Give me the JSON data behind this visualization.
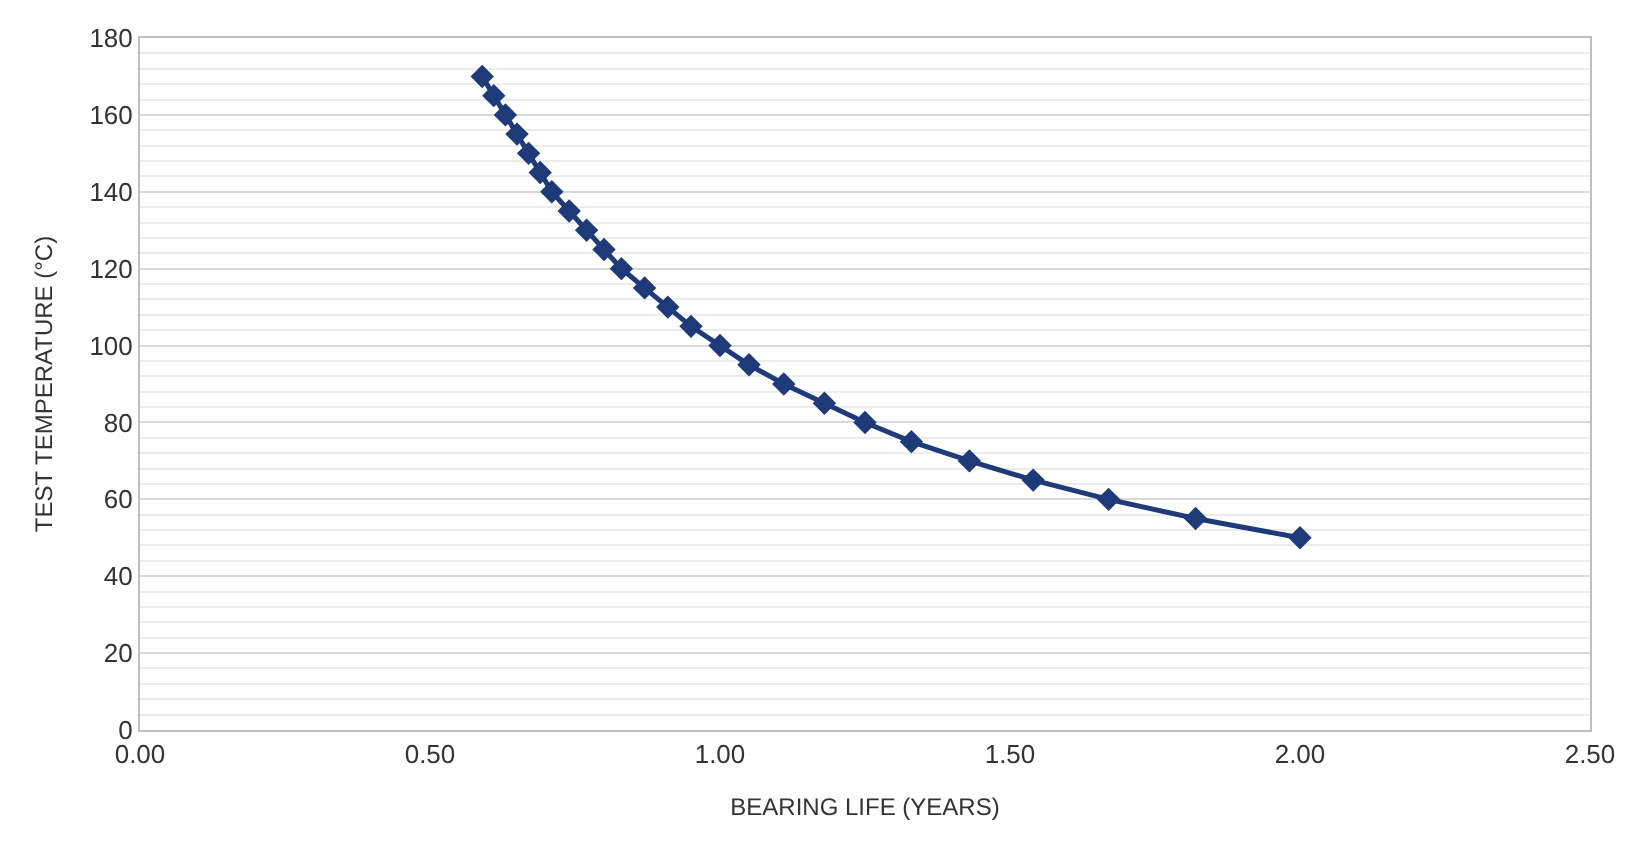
{
  "chart_data": {
    "type": "line",
    "xlabel": "BEARING LIFE (YEARS)",
    "ylabel": "TEST TEMPERATURE (°C)",
    "x": [
      0.59,
      0.61,
      0.63,
      0.65,
      0.67,
      0.69,
      0.71,
      0.74,
      0.77,
      0.8,
      0.83,
      0.87,
      0.91,
      0.95,
      1.0,
      1.05,
      1.11,
      1.18,
      1.25,
      1.33,
      1.43,
      1.54,
      1.67,
      1.82,
      2.0
    ],
    "values": [
      170,
      165,
      160,
      155,
      150,
      145,
      140,
      135,
      130,
      125,
      120,
      115,
      110,
      105,
      100,
      95,
      90,
      85,
      80,
      75,
      70,
      65,
      60,
      55,
      50
    ],
    "color": "#1f3a78",
    "marker": "diamond",
    "line_style": "solid",
    "grid": "y",
    "legend": false,
    "xlim": [
      0,
      2.5
    ],
    "xticks": [
      {
        "value": 0,
        "label": "0.00"
      },
      {
        "value": 0.5,
        "label": "0.50"
      },
      {
        "value": 1,
        "label": "1.00"
      },
      {
        "value": 1.5,
        "label": "1.50"
      },
      {
        "value": 2,
        "label": "2.00"
      },
      {
        "value": 2.5,
        "label": "2.50"
      }
    ],
    "ylim": [
      0,
      180
    ],
    "yticks": [
      0,
      20,
      40,
      60,
      80,
      100,
      120,
      140,
      160,
      180
    ]
  }
}
